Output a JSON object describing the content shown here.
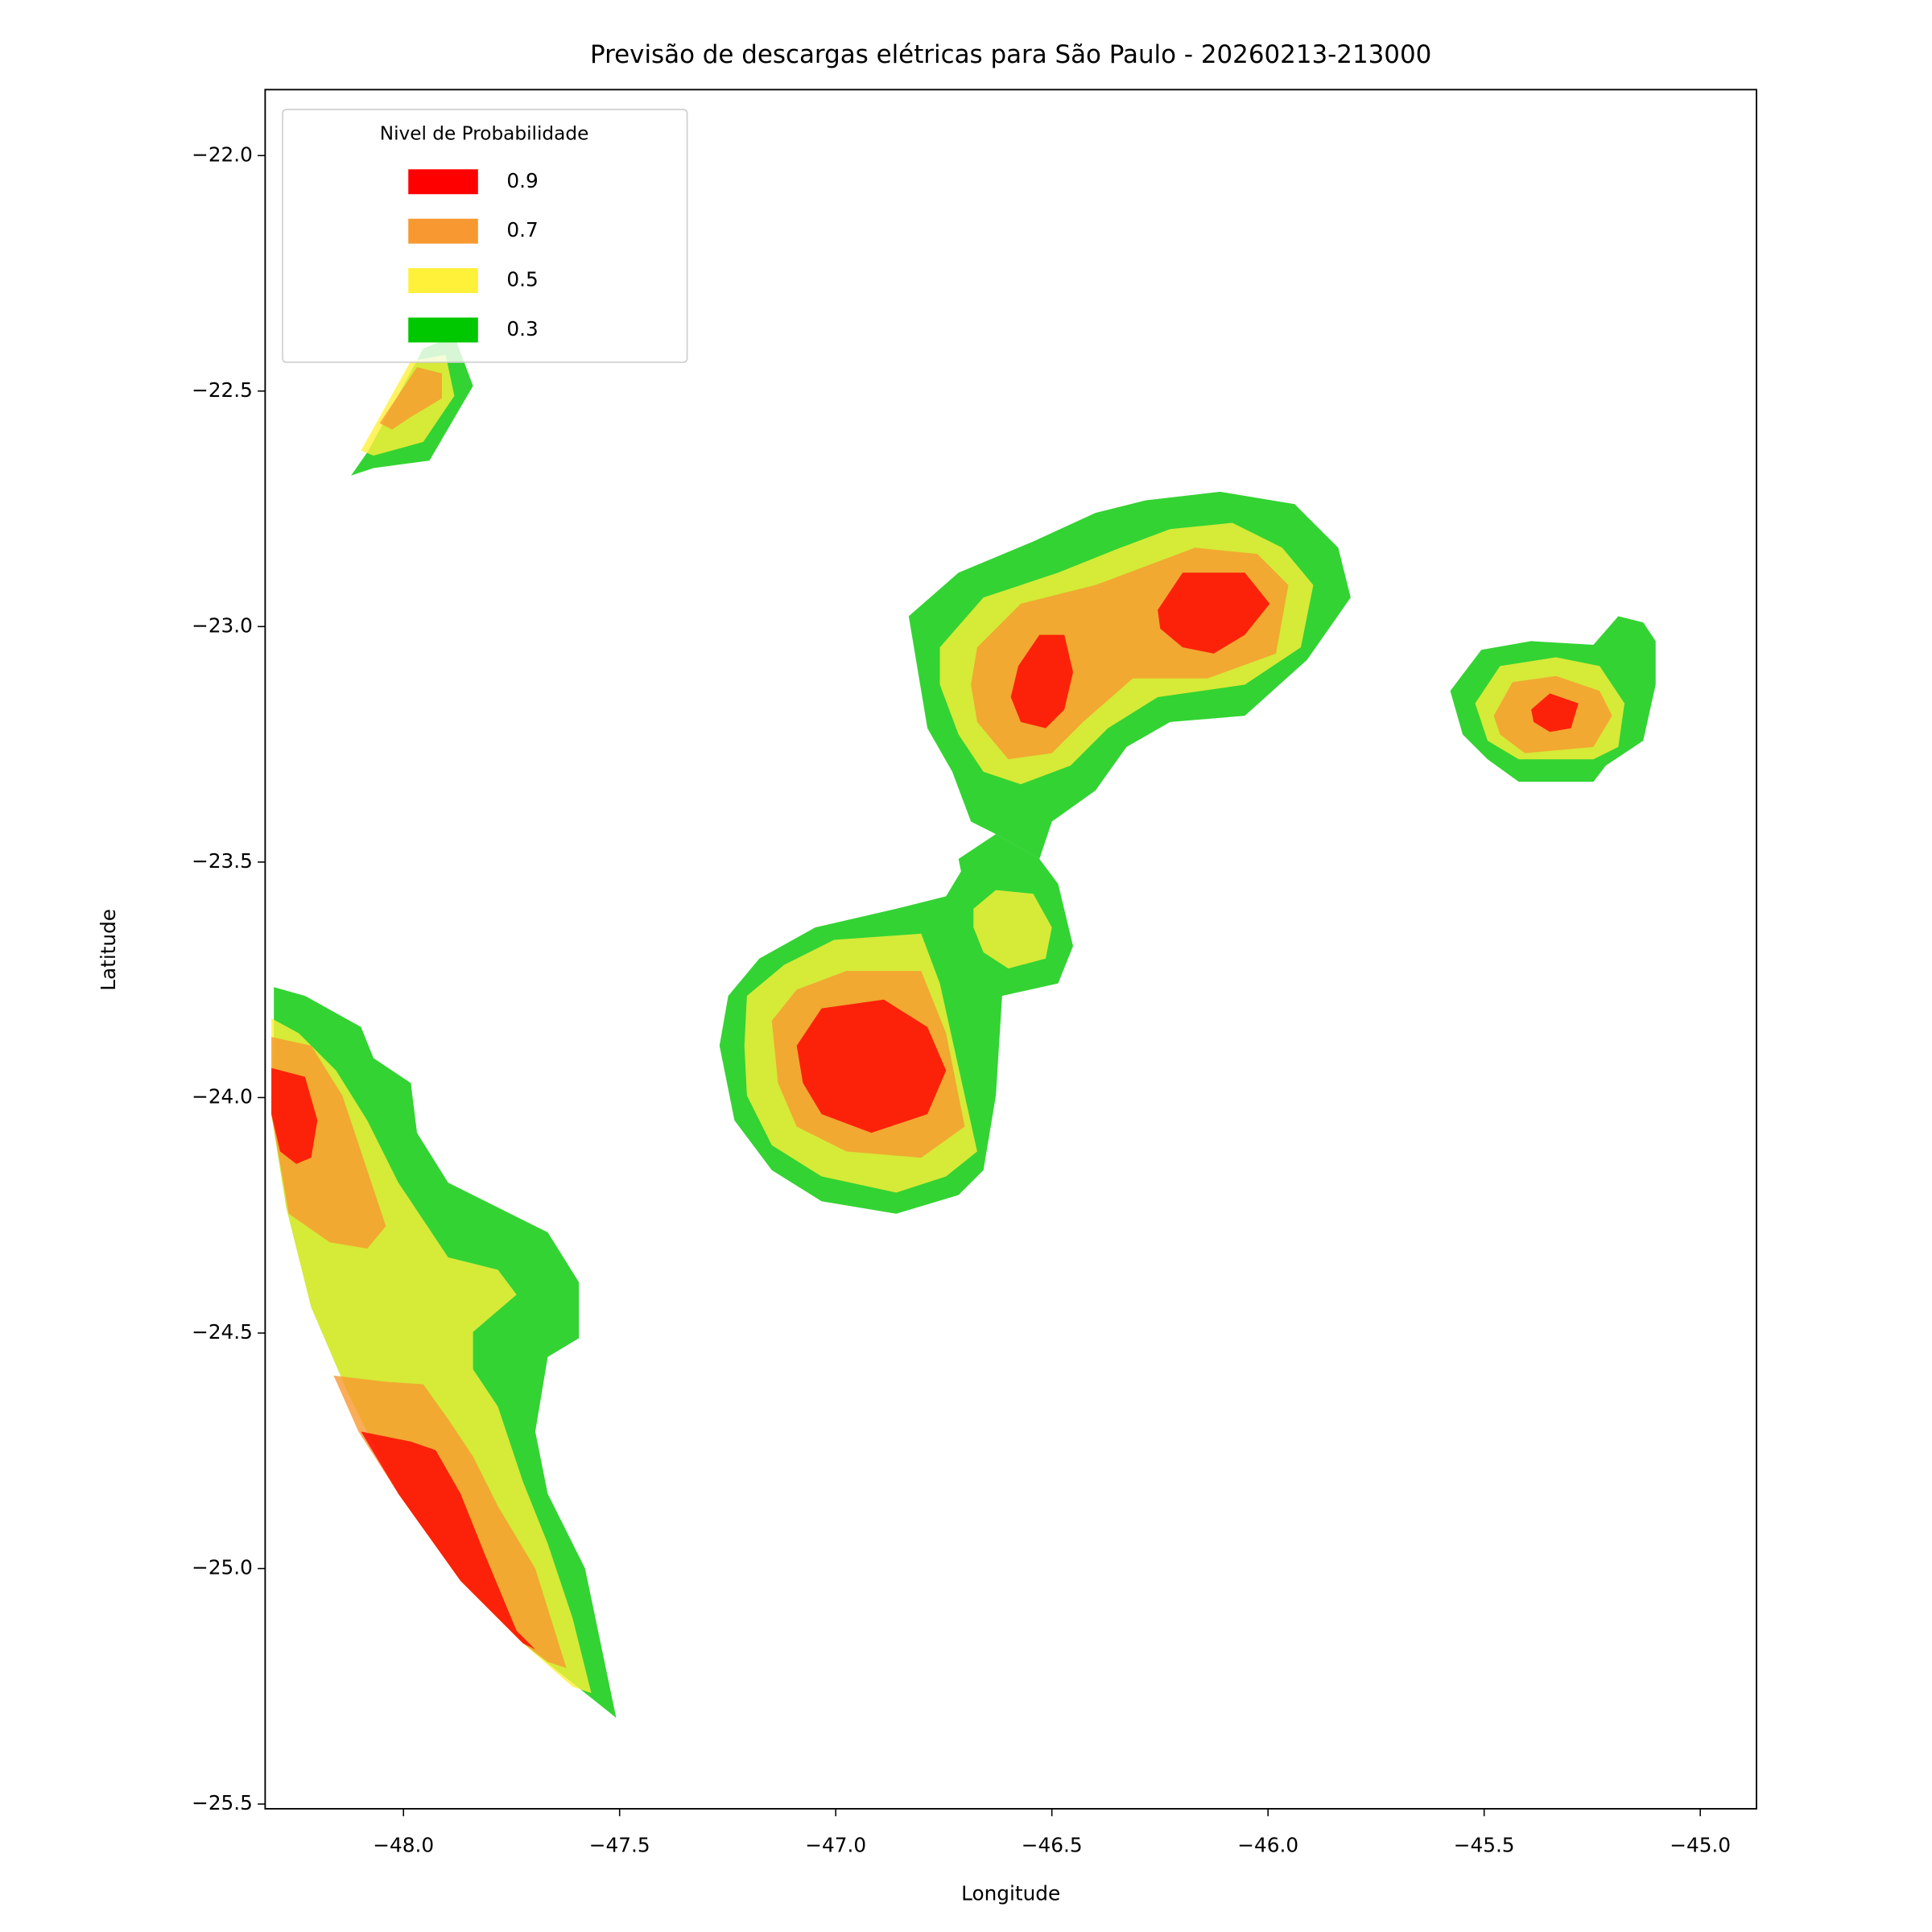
{
  "chart_data": {
    "type": "contour",
    "title": "Previsão de descargas elétricas para São Paulo - 20260213-213000",
    "x_label": "Longitude",
    "y_label": "Latitude",
    "xlim": [
      -48.32,
      -44.87
    ],
    "ylim": [
      -25.51,
      -21.86
    ],
    "xticks": [
      {
        "value": -48,
        "label": "−48.0"
      },
      {
        "value": -47.5,
        "label": "−47.5"
      },
      {
        "value": -47,
        "label": "−47.0"
      },
      {
        "value": -46.5,
        "label": "−46.5"
      },
      {
        "value": -46,
        "label": "−46.0"
      },
      {
        "value": -45.5,
        "label": "−45.5"
      },
      {
        "value": -45,
        "label": "−45.0"
      }
    ],
    "yticks": [
      {
        "value": -22,
        "label": "−22.0"
      },
      {
        "value": -22.5,
        "label": "−22.5"
      },
      {
        "value": -23,
        "label": "−23.0"
      },
      {
        "value": -23.5,
        "label": "−23.5"
      },
      {
        "value": -24,
        "label": "−24.0"
      },
      {
        "value": -24.5,
        "label": "−24.5"
      },
      {
        "value": -25,
        "label": "−25.0"
      },
      {
        "value": -25.5,
        "label": "−25.5"
      }
    ],
    "legend_title": "Nivel de Probabilidade",
    "legend_position": "upper left",
    "series": [
      {
        "name": "0.9",
        "color": "#ff0000"
      },
      {
        "name": "0.7",
        "color": "#f89830"
      },
      {
        "name": "0.5",
        "color": "#fff03a"
      },
      {
        "name": "0.3",
        "color": "#00c800"
      }
    ]
  }
}
